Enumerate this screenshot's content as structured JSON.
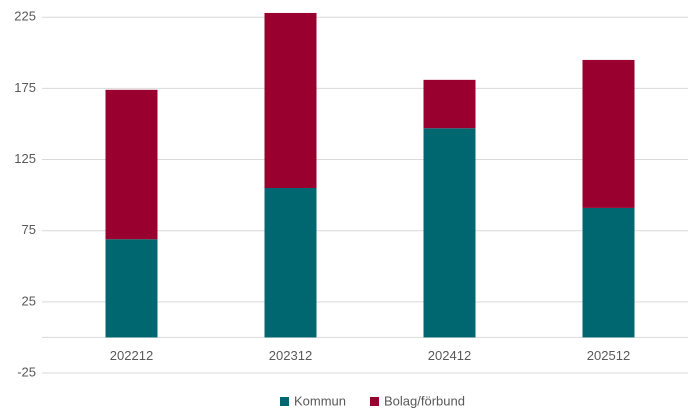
{
  "chart_data": {
    "type": "stacked_bar",
    "categories": [
      "202212",
      "202312",
      "202412",
      "202512"
    ],
    "series": [
      {
        "name": "Kommun",
        "color": "#006770",
        "values": [
          69,
          105,
          147,
          91
        ]
      },
      {
        "name": "Bolag/förbund",
        "color": "#990030",
        "values": [
          105,
          123,
          34,
          104
        ]
      }
    ],
    "ylim": [
      -25,
      235
    ],
    "yticks": [
      -25,
      25,
      75,
      125,
      175,
      225
    ],
    "grid": true
  }
}
